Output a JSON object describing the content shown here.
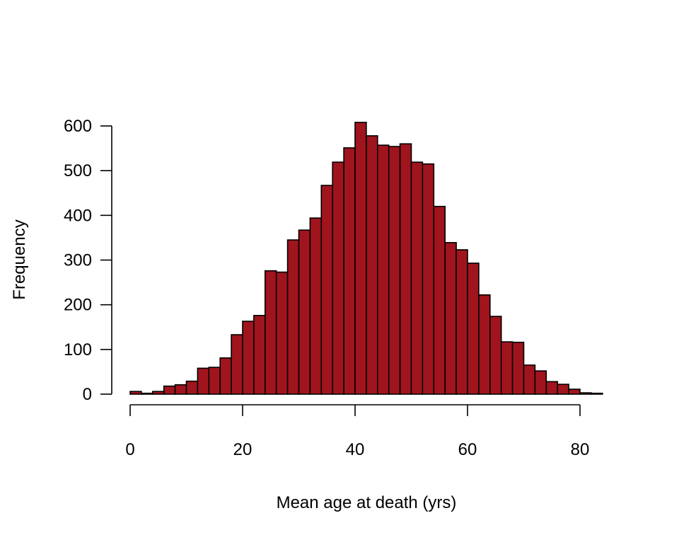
{
  "chart_data": {
    "type": "bar",
    "subtype": "histogram",
    "title": "",
    "xlabel": "Mean age at death (yrs)",
    "ylabel": "Frequency",
    "bin_width": 2,
    "bin_start": 0,
    "values": [
      6,
      2,
      6,
      18,
      21,
      29,
      58,
      60,
      81,
      133,
      163,
      176,
      276,
      273,
      345,
      367,
      394,
      467,
      519,
      551,
      608,
      578,
      557,
      554,
      560,
      519,
      515,
      420,
      339,
      323,
      293,
      222,
      174,
      117,
      116,
      65,
      52,
      28,
      22,
      11,
      3,
      2
    ],
    "xlim": [
      0,
      84
    ],
    "ylim": [
      0,
      600
    ],
    "xticks": [
      "0",
      "20",
      "40",
      "60",
      "80"
    ],
    "yticks": [
      "0",
      "100",
      "200",
      "300",
      "400",
      "500",
      "600"
    ],
    "bar_color": "#A0141E",
    "edge_color": "#000000",
    "grid": false
  }
}
